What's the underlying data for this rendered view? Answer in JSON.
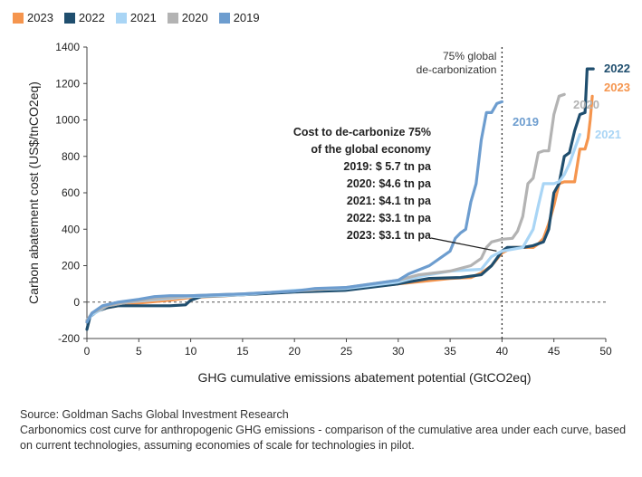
{
  "chart_data": {
    "type": "line",
    "xlabel": "GHG cumulative emissions abatement potential (GtCO2eq)",
    "ylabel": "Carbon abatement cost (US$/tnCO2eq)",
    "xlim": [
      0,
      50
    ],
    "ylim": [
      -200,
      1400
    ],
    "xticks": [
      0,
      5,
      10,
      15,
      20,
      25,
      30,
      35,
      40,
      45,
      50
    ],
    "yticks": [
      -200,
      0,
      200,
      400,
      600,
      800,
      1000,
      1200,
      1400
    ],
    "legend_position": "top-left",
    "reference_line": {
      "x": 40,
      "label": [
        "75% global",
        "de-carbonization"
      ]
    },
    "zero_line": true,
    "annotation": {
      "lines": [
        "Cost to de-carbonize 75%",
        "of the global economy",
        "2019: $ 5.7 tn pa",
        "2020: $4.6 tn pa",
        "2021: $4.1 tn pa",
        "2022: $3.1 tn pa",
        "2023: $3.1 tn pa"
      ]
    },
    "series": [
      {
        "name": "2023",
        "color": "#f5954e",
        "end_label": "2023",
        "points": [
          [
            0,
            -110
          ],
          [
            0.5,
            -60
          ],
          [
            2,
            -30
          ],
          [
            4,
            -10
          ],
          [
            6,
            0
          ],
          [
            8,
            10
          ],
          [
            10,
            25
          ],
          [
            15,
            40
          ],
          [
            20,
            60
          ],
          [
            25,
            70
          ],
          [
            30,
            100
          ],
          [
            35,
            130
          ],
          [
            37,
            135
          ],
          [
            38,
            160
          ],
          [
            39,
            200
          ],
          [
            40,
            270
          ],
          [
            41,
            300
          ],
          [
            42,
            300
          ],
          [
            43,
            300
          ],
          [
            43.5,
            320
          ],
          [
            44,
            350
          ],
          [
            44.5,
            430
          ],
          [
            45,
            530
          ],
          [
            45.5,
            650
          ],
          [
            46,
            660
          ],
          [
            47,
            660
          ],
          [
            47.5,
            840
          ],
          [
            48,
            840
          ],
          [
            48.3,
            900
          ],
          [
            48.5,
            1000
          ],
          [
            48.7,
            1130
          ]
        ]
      },
      {
        "name": "2022",
        "color": "#1f4e6e",
        "end_label": "2022",
        "points": [
          [
            0,
            -150
          ],
          [
            0.3,
            -80
          ],
          [
            1,
            -50
          ],
          [
            2,
            -30
          ],
          [
            3,
            -20
          ],
          [
            5,
            -20
          ],
          [
            8,
            -20
          ],
          [
            9.5,
            -15
          ],
          [
            10,
            10
          ],
          [
            11,
            30
          ],
          [
            15,
            40
          ],
          [
            20,
            55
          ],
          [
            25,
            65
          ],
          [
            30,
            100
          ],
          [
            33,
            130
          ],
          [
            36,
            135
          ],
          [
            38,
            150
          ],
          [
            39,
            200
          ],
          [
            39.5,
            240
          ],
          [
            40,
            280
          ],
          [
            40.5,
            300
          ],
          [
            42,
            300
          ],
          [
            43,
            310
          ],
          [
            44,
            330
          ],
          [
            44.5,
            400
          ],
          [
            45,
            600
          ],
          [
            45.5,
            650
          ],
          [
            46,
            800
          ],
          [
            46.5,
            820
          ],
          [
            47,
            940
          ],
          [
            47.5,
            1030
          ],
          [
            48,
            1040
          ],
          [
            48.2,
            1280
          ],
          [
            48.8,
            1280
          ]
        ]
      },
      {
        "name": "2021",
        "color": "#a9d5f5",
        "end_label": "2021",
        "points": [
          [
            0,
            -100
          ],
          [
            0.5,
            -70
          ],
          [
            2,
            -20
          ],
          [
            4,
            0
          ],
          [
            6,
            10
          ],
          [
            8,
            20
          ],
          [
            10,
            30
          ],
          [
            15,
            40
          ],
          [
            20,
            65
          ],
          [
            25,
            75
          ],
          [
            30,
            110
          ],
          [
            32,
            140
          ],
          [
            35,
            170
          ],
          [
            38,
            180
          ],
          [
            39,
            250
          ],
          [
            40,
            280
          ],
          [
            41,
            290
          ],
          [
            42,
            300
          ],
          [
            43,
            400
          ],
          [
            43.5,
            530
          ],
          [
            44,
            650
          ],
          [
            44.5,
            650
          ],
          [
            45,
            650
          ],
          [
            45.5,
            660
          ],
          [
            46,
            700
          ],
          [
            46.5,
            760
          ],
          [
            47,
            840
          ],
          [
            47.5,
            920
          ]
        ]
      },
      {
        "name": "2020",
        "color": "#b3b3b3",
        "end_label": "2020",
        "points": [
          [
            0,
            -100
          ],
          [
            0.5,
            -60
          ],
          [
            2,
            -20
          ],
          [
            4,
            0
          ],
          [
            6,
            15
          ],
          [
            8,
            25
          ],
          [
            10,
            35
          ],
          [
            15,
            45
          ],
          [
            20,
            60
          ],
          [
            25,
            80
          ],
          [
            30,
            120
          ],
          [
            32,
            150
          ],
          [
            35,
            170
          ],
          [
            37,
            200
          ],
          [
            38,
            240
          ],
          [
            38.5,
            300
          ],
          [
            39,
            330
          ],
          [
            40,
            345
          ],
          [
            41,
            350
          ],
          [
            41.5,
            390
          ],
          [
            42,
            470
          ],
          [
            42.5,
            650
          ],
          [
            43,
            680
          ],
          [
            43.5,
            820
          ],
          [
            44,
            830
          ],
          [
            44.5,
            830
          ],
          [
            45,
            1030
          ],
          [
            45.5,
            1130
          ],
          [
            46,
            1140
          ]
        ]
      },
      {
        "name": "2019",
        "color": "#6d9dcf",
        "end_label": "2019",
        "points": [
          [
            0,
            -110
          ],
          [
            0.5,
            -60
          ],
          [
            1.5,
            -20
          ],
          [
            3,
            0
          ],
          [
            5,
            15
          ],
          [
            6.5,
            30
          ],
          [
            8,
            35
          ],
          [
            10,
            35
          ],
          [
            15,
            45
          ],
          [
            20,
            60
          ],
          [
            22,
            75
          ],
          [
            25,
            80
          ],
          [
            30,
            120
          ],
          [
            31,
            155
          ],
          [
            33,
            200
          ],
          [
            35,
            280
          ],
          [
            35.5,
            350
          ],
          [
            36,
            380
          ],
          [
            36.5,
            400
          ],
          [
            37,
            550
          ],
          [
            37.5,
            650
          ],
          [
            38,
            890
          ],
          [
            38.5,
            1040
          ],
          [
            39,
            1040
          ],
          [
            39.5,
            1090
          ],
          [
            40,
            1100
          ]
        ]
      }
    ]
  },
  "legend": [
    {
      "label": "2023",
      "color": "#f5954e"
    },
    {
      "label": "2022",
      "color": "#1f4e6e"
    },
    {
      "label": "2021",
      "color": "#a9d5f5"
    },
    {
      "label": "2020",
      "color": "#b3b3b3"
    },
    {
      "label": "2019",
      "color": "#6d9dcf"
    }
  ],
  "footer": {
    "source": "Source: Goldman Sachs Global Investment Research",
    "caption": "Carbonomics cost curve for anthropogenic GHG emissions - comparison of the cumulative area under each curve, based on current technologies, assuming economies of scale for technologies in pilot."
  }
}
